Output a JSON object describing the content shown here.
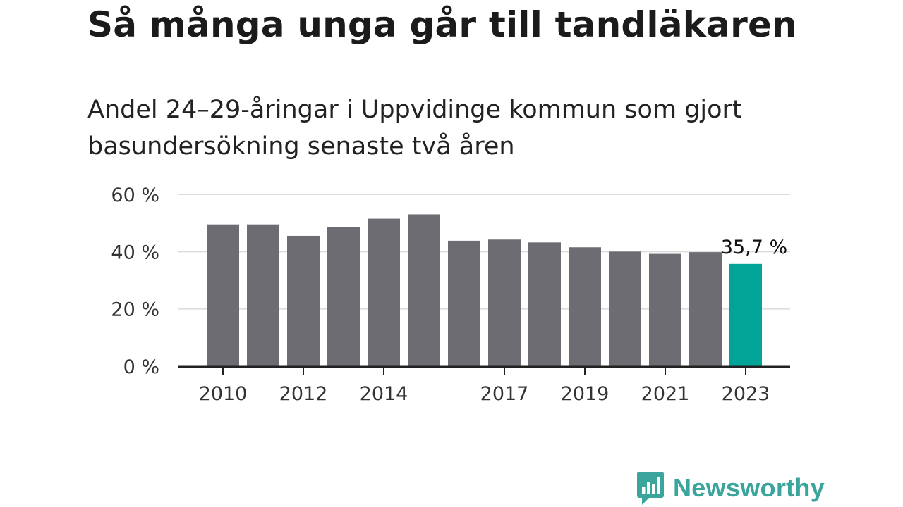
{
  "title": "Så många unga går till tandläkaren",
  "subtitle": "Andel 24–29-åringar i Uppvidinge kommun som gjort basundersökning senaste två åren",
  "brand": {
    "name": "Newsworthy",
    "icon": "bar-chart-speech-bubble-icon",
    "color": "#3aa59c"
  },
  "chart_data": {
    "type": "bar",
    "categories": [
      "2010",
      "2011",
      "2012",
      "2013",
      "2014",
      "2015",
      "2016",
      "2017",
      "2018",
      "2019",
      "2020",
      "2021",
      "2022",
      "2023"
    ],
    "values": [
      49.5,
      49.5,
      45.5,
      48.5,
      51.5,
      53.0,
      43.8,
      44.2,
      43.2,
      41.5,
      40.0,
      39.2,
      39.8,
      35.7
    ],
    "ylim": [
      0,
      60
    ],
    "yticks": [
      0,
      20,
      40,
      60
    ],
    "ytick_labels": [
      "0 %",
      "20 %",
      "40 %",
      "60 %"
    ],
    "xtick_labels": [
      "2010",
      "",
      "2012",
      "",
      "2014",
      "",
      "",
      "2017",
      "",
      "2019",
      "",
      "2021",
      "",
      "2023"
    ],
    "highlight_index": 13,
    "highlight_label": "35,7 %",
    "bar_color": "#6d6c73",
    "highlight_color": "#02a497",
    "grid": true,
    "legend": "none"
  }
}
